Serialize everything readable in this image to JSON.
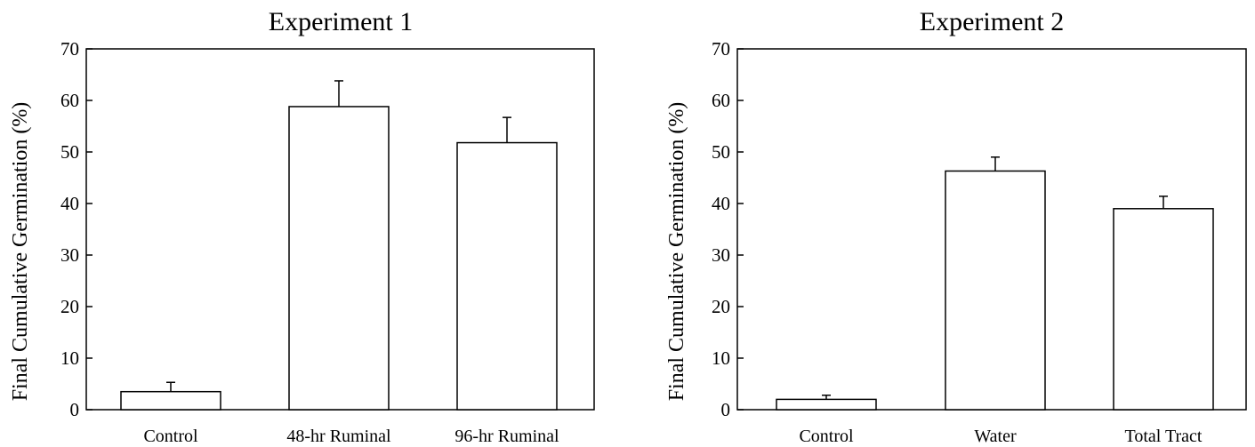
{
  "chart_data": [
    {
      "type": "bar",
      "title": "Experiment 1",
      "ylabel": "Final Cumulative Germination (%)",
      "xlabel": "",
      "ylim": [
        0,
        70
      ],
      "yticks": [
        0,
        10,
        20,
        30,
        40,
        50,
        60,
        70
      ],
      "categories": [
        "Control",
        "48-hr Ruminal",
        "96-hr Ruminal"
      ],
      "values": [
        3.5,
        58.8,
        51.8
      ],
      "error_upper": [
        1.8,
        5.0,
        4.9
      ],
      "bar_color": "#ffffff",
      "grid": false
    },
    {
      "type": "bar",
      "title": "Experiment 2",
      "ylabel": "Final Cumulative Germination (%)",
      "xlabel": "",
      "ylim": [
        0,
        70
      ],
      "yticks": [
        0,
        10,
        20,
        30,
        40,
        50,
        60,
        70
      ],
      "categories": [
        "Control",
        "Water",
        "Total Tract"
      ],
      "values": [
        2.0,
        46.3,
        39.0
      ],
      "error_upper": [
        0.8,
        2.7,
        2.4
      ],
      "bar_color": "#ffffff",
      "grid": false
    }
  ]
}
